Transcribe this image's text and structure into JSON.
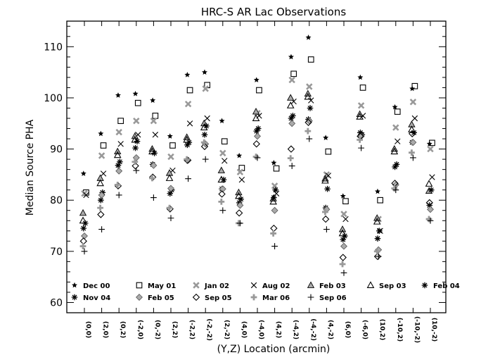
{
  "chart_data": {
    "type": "scatter",
    "title": "HRC-S AR Lac Observations",
    "xlabel": "(Y,Z) Location (arcmin)",
    "ylabel": "Median Source PHA",
    "ylim": [
      58,
      115
    ],
    "yticks": [
      60,
      70,
      80,
      90,
      100,
      110
    ],
    "grid": false,
    "legend_position": "bottom-inside",
    "categories": [
      "(0,0)",
      "(2,0)",
      "(0,2)",
      "(-2,0)",
      "(0,-2)",
      "(2,2)",
      "(-2,2)",
      "(-2,-2)",
      "(2,-2)",
      "(4,0)",
      "(-4,0)",
      "(4,2)",
      "(-4,2)",
      "(-4,-2)",
      "(4,-2)",
      "(6,0)",
      "(-6,0)",
      "(10,2)",
      "(-10,2)",
      "(-10,-2)",
      "(10,-2)"
    ],
    "series": [
      {
        "name": "Dec 00",
        "marker": "star",
        "offset": -0.05,
        "values": [
          85.2,
          93.0,
          100.5,
          100.8,
          99.5,
          92.5,
          104.5,
          105.0,
          95.5,
          88.7,
          103.5,
          87.3,
          108.0,
          111.8,
          92.2,
          80.8,
          104.0,
          81.7,
          98.2,
          101.8,
          91.0
        ]
      },
      {
        "name": "May 01",
        "marker": "square",
        "offset": 0.1,
        "values": [
          81.5,
          90.7,
          95.5,
          99.0,
          96.5,
          90.7,
          101.5,
          102.5,
          91.5,
          86.3,
          101.5,
          86.2,
          104.7,
          107.5,
          89.5,
          79.8,
          102.0,
          80.0,
          97.3,
          102.3,
          91.2
        ]
      },
      {
        "name": "Jan 02",
        "marker": "xthick",
        "offset": 0.0,
        "values": [
          81.3,
          88.7,
          93.3,
          95.5,
          95.5,
          88.5,
          98.8,
          101.8,
          89.2,
          85.5,
          97.0,
          82.8,
          103.5,
          102.2,
          85.0,
          77.3,
          98.5,
          76.3,
          94.2,
          99.2,
          90.0
        ]
      },
      {
        "name": "Aug 02",
        "marker": "x",
        "offset": 0.1,
        "values": [
          81.0,
          85.2,
          91.0,
          92.8,
          92.8,
          85.8,
          95.0,
          96.0,
          87.7,
          84.0,
          96.5,
          81.3,
          99.3,
          99.5,
          84.8,
          76.3,
          96.5,
          74.0,
          91.5,
          96.0,
          84.5
        ]
      },
      {
        "name": "Feb 03",
        "marker": "triangle-filled",
        "offset": -0.08,
        "values": [
          77.5,
          84.3,
          89.5,
          92.5,
          90.0,
          85.3,
          92.3,
          95.0,
          85.8,
          81.5,
          97.3,
          80.3,
          100.0,
          100.8,
          84.2,
          74.3,
          96.8,
          76.5,
          90.0,
          94.8,
          81.8
        ]
      },
      {
        "name": "Sep 03",
        "marker": "triangle",
        "offset": -0.08,
        "values": [
          76.0,
          83.3,
          88.8,
          91.8,
          89.5,
          84.3,
          91.8,
          94.2,
          84.0,
          80.8,
          96.0,
          79.7,
          98.5,
          100.2,
          83.8,
          73.5,
          96.3,
          75.8,
          89.5,
          93.8,
          83.2
        ]
      },
      {
        "name": "Feb 04",
        "marker": "asterisk",
        "offset": 0.05,
        "values": [
          75.5,
          81.5,
          87.5,
          91.5,
          89.2,
          82.0,
          91.3,
          94.5,
          84.0,
          80.2,
          94.0,
          82.0,
          96.5,
          98.0,
          82.2,
          73.0,
          92.8,
          74.0,
          87.0,
          93.2,
          82.0
        ]
      },
      {
        "name": "Nov 04",
        "marker": "asterisk",
        "offset": -0.05,
        "values": [
          74.5,
          80.0,
          86.8,
          90.2,
          87.0,
          81.3,
          90.8,
          92.8,
          82.2,
          79.5,
          93.5,
          80.5,
          96.0,
          95.8,
          78.5,
          72.3,
          93.2,
          72.5,
          86.5,
          91.3,
          79.0
        ]
      },
      {
        "name": "Feb 05",
        "marker": "diamond-filled",
        "offset": 0.0,
        "values": [
          73.0,
          81.0,
          85.7,
          88.3,
          86.8,
          82.3,
          87.8,
          91.0,
          82.2,
          79.0,
          92.5,
          78.0,
          95.0,
          95.5,
          78.2,
          71.0,
          92.5,
          70.3,
          83.0,
          91.3,
          78.2
        ]
      },
      {
        "name": "Sep 05",
        "marker": "diamond",
        "offset": -0.05,
        "values": [
          72.0,
          77.2,
          82.8,
          86.7,
          84.5,
          78.3,
          87.8,
          90.5,
          81.2,
          77.5,
          91.0,
          74.5,
          90.0,
          95.2,
          76.3,
          68.8,
          92.5,
          69.0,
          83.3,
          93.0,
          79.5
        ]
      },
      {
        "name": "Mar 06",
        "marker": "plus-filled",
        "offset": -0.08,
        "values": [
          71.0,
          78.5,
          83.0,
          87.5,
          84.3,
          78.5,
          88.0,
          91.3,
          79.7,
          75.5,
          88.5,
          73.5,
          88.2,
          93.5,
          77.7,
          67.5,
          91.8,
          70.0,
          82.3,
          89.3,
          76.3
        ]
      },
      {
        "name": "Sep 06",
        "marker": "plus",
        "offset": 0.0,
        "values": [
          70.0,
          74.3,
          81.0,
          85.8,
          80.5,
          76.5,
          84.2,
          88.0,
          78.0,
          75.5,
          88.3,
          71.0,
          86.7,
          92.0,
          74.3,
          65.8,
          90.2,
          69.0,
          82.0,
          88.3,
          76.0
        ]
      }
    ]
  }
}
